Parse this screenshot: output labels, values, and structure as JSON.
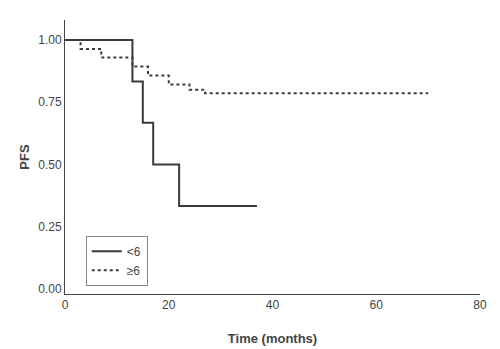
{
  "chart_data": {
    "type": "step",
    "xlabel": "Time (months)",
    "ylabel": "PFS",
    "xlim": [
      0,
      80
    ],
    "ylim": [
      -0.02,
      1.08
    ],
    "xticks": [
      0,
      20,
      40,
      60,
      80
    ],
    "yticks": [
      {
        "value": 0.0,
        "label": "0.00"
      },
      {
        "value": 0.25,
        "label": "0.25"
      },
      {
        "value": 0.5,
        "label": "0.50"
      },
      {
        "value": 0.75,
        "label": "0.75"
      },
      {
        "value": 1.0,
        "label": "1.00"
      }
    ],
    "series": [
      {
        "name": "<6",
        "color": "#3a3a3a",
        "line_style": "solid",
        "x": [
          0,
          13,
          13,
          15,
          15,
          17,
          17,
          22,
          22,
          37,
          37
        ],
        "values": [
          1.0,
          1.0,
          0.833,
          0.833,
          0.667,
          0.667,
          0.5,
          0.5,
          0.333,
          0.333,
          0.333
        ]
      },
      {
        "name": "≥6",
        "color": "#3a3a3a",
        "line_style": "dotted",
        "x": [
          0,
          3,
          3,
          7,
          7,
          13,
          13,
          16,
          16,
          20,
          20,
          24,
          24,
          27,
          27,
          70,
          70
        ],
        "values": [
          1.0,
          1.0,
          0.964,
          0.964,
          0.929,
          0.929,
          0.893,
          0.893,
          0.857,
          0.857,
          0.821,
          0.821,
          0.8,
          0.8,
          0.786,
          0.786,
          0.786
        ]
      }
    ],
    "legend": "lower left",
    "grid": false
  }
}
